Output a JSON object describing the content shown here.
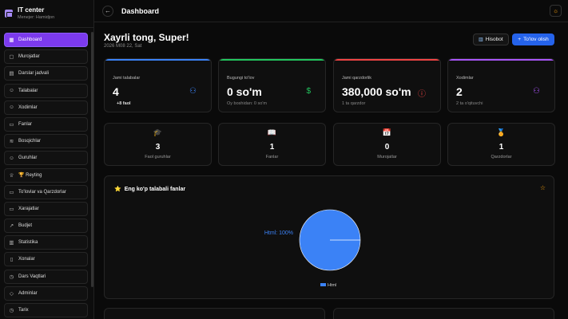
{
  "sidebar": {
    "title": "IT center",
    "subtitle": "Menejer: Hamidjon",
    "items": [
      {
        "label": "Dashboard",
        "icon": "grid-icon",
        "glyph": "▦",
        "active": true
      },
      {
        "label": "Murojatlar",
        "icon": "message-icon",
        "glyph": "▢"
      },
      {
        "label": "Darslar jadvali",
        "icon": "calendar-icon",
        "glyph": "▤"
      },
      {
        "label": "Talabalar",
        "icon": "users-icon",
        "glyph": "☺"
      },
      {
        "label": "Xodimlar",
        "icon": "user-icon",
        "glyph": "☺"
      },
      {
        "label": "Fanlar",
        "icon": "book-icon",
        "glyph": "▭"
      },
      {
        "label": "Bosqichlar",
        "icon": "layers-icon",
        "glyph": "≋"
      },
      {
        "label": "Guruhlar",
        "icon": "group-icon",
        "glyph": "☺"
      },
      {
        "label": "🏆 Reyting",
        "icon": "trophy-icon",
        "glyph": "♕"
      },
      {
        "label": "To'lovlar va Qarzdorlar",
        "icon": "wallet-icon",
        "glyph": "▭"
      },
      {
        "label": "Xarajatlar",
        "icon": "receipt-icon",
        "glyph": "▭"
      },
      {
        "label": "Budjet",
        "icon": "trend-icon",
        "glyph": "↗"
      },
      {
        "label": "Statistika",
        "icon": "chart-icon",
        "glyph": "▥"
      },
      {
        "label": "Xonalar",
        "icon": "door-icon",
        "glyph": "▯"
      },
      {
        "label": "Dars Vaqtlari",
        "icon": "clock-icon",
        "glyph": "◷"
      },
      {
        "label": "Adminlar",
        "icon": "shield-icon",
        "glyph": "◇"
      },
      {
        "label": "Tarix",
        "icon": "history-icon",
        "glyph": "◷"
      }
    ]
  },
  "topbar": {
    "title": "Dashboard",
    "back_glyph": "←",
    "theme_glyph": "☼"
  },
  "header": {
    "greeting": "Xayrli tong, Super!",
    "date": "2026 M08 22, Sat",
    "btn_report": "Hisobot",
    "btn_payment": "To'lov olish"
  },
  "stats": [
    {
      "label": "Jami talabalar",
      "value": "4",
      "sub": "+8 faol",
      "color": "#3b82f6",
      "icon_glyph": "⚇"
    },
    {
      "label": "Bugungi to'lov",
      "value": "0 so'm",
      "sub": "Oy boshidan: 0 so'm",
      "color": "#22c55e",
      "icon_glyph": "$"
    },
    {
      "label": "Jami qarzdorlik",
      "value": "380,000 so'm",
      "sub": "1 ta qarzdor",
      "color": "#ef4444",
      "icon_glyph": "ⓘ"
    },
    {
      "label": "Xodimlar",
      "value": "2",
      "sub": "2 ta o'qituvchi",
      "color": "#a855f7",
      "icon_glyph": "⚇"
    }
  ],
  "mini": [
    {
      "label": "Faol guruhlar",
      "value": "3",
      "color": "#3b82f6",
      "icon_glyph": "🎓"
    },
    {
      "label": "Fanlar",
      "value": "1",
      "color": "#22c55e",
      "icon_glyph": "📖"
    },
    {
      "label": "Murojatlar",
      "value": "0",
      "color": "#f97316",
      "icon_glyph": "📅"
    },
    {
      "label": "Qarzdorlar",
      "value": "1",
      "color": "#a855f7",
      "icon_glyph": "🏅"
    }
  ],
  "chart_card": {
    "title": "Eng ko'p talabali fanlar",
    "title_icon": "⭐",
    "star_glyph": "☆"
  },
  "chart_data": {
    "type": "pie",
    "title": "",
    "categories": [
      "Html"
    ],
    "values": [
      100
    ],
    "slice_labels": [
      "Html: 100%"
    ],
    "colors": [
      "#3b82f6"
    ],
    "legend": "bottom"
  }
}
